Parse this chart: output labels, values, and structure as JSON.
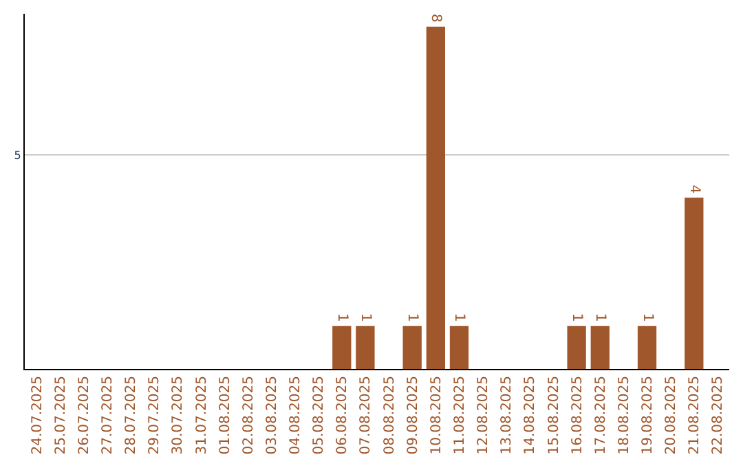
{
  "chart_data": {
    "type": "bar",
    "categories": [
      "24.07.2025",
      "25.07.2025",
      "26.07.2025",
      "27.07.2025",
      "28.07.2025",
      "29.07.2025",
      "30.07.2025",
      "31.07.2025",
      "01.08.2025",
      "02.08.2025",
      "03.08.2025",
      "04.08.2025",
      "05.08.2025",
      "06.08.2025",
      "07.08.2025",
      "08.08.2025",
      "09.08.2025",
      "10.08.2025",
      "11.08.2025",
      "12.08.2025",
      "13.08.2025",
      "14.08.2025",
      "15.08.2025",
      "16.08.2025",
      "17.08.2025",
      "18.08.2025",
      "19.08.2025",
      "20.08.2025",
      "21.08.2025",
      "22.08.2025"
    ],
    "values": [
      null,
      null,
      null,
      null,
      null,
      null,
      null,
      null,
      null,
      null,
      null,
      null,
      null,
      1,
      1,
      null,
      1,
      8,
      1,
      null,
      null,
      null,
      null,
      1,
      1,
      null,
      1,
      null,
      4,
      null
    ],
    "data_labels": true,
    "color": "#a0572b",
    "ylim": [
      0,
      8.3
    ],
    "yticks": [
      5
    ],
    "grid": "y",
    "legend": false
  }
}
